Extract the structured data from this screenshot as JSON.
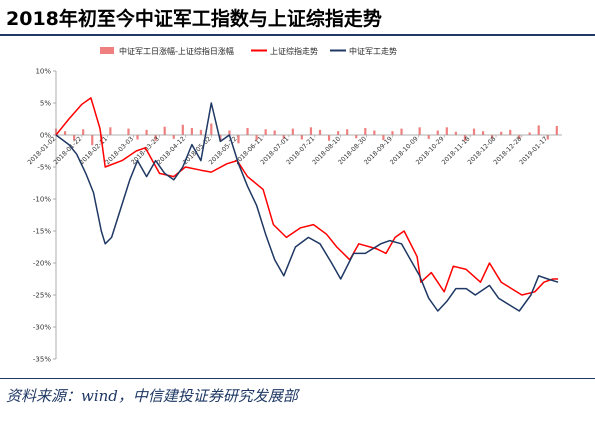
{
  "title": "2018年初至今中证军工指数与上证综指走势",
  "source": "资料来源：wind，中信建投证券研究发展部",
  "chart_data": {
    "type": "line",
    "ylim": [
      -35,
      10
    ],
    "yticks": [
      10,
      5,
      0,
      -5,
      -10,
      -15,
      -20,
      -25,
      -30,
      -35
    ],
    "ytick_labels": [
      "10%",
      "5%",
      "0%",
      "-5%",
      "-10%",
      "-15%",
      "-20%",
      "-25%",
      "-30%",
      "-35%"
    ],
    "xtick_labels": [
      "2018-01-02",
      "2018-01-22",
      "2018-02-11",
      "2018-03-03",
      "2018-03-23",
      "2018-04-12",
      "2018-05-02",
      "2018-05-22",
      "2018-06-11",
      "2018-07-01",
      "2018-07-21",
      "2018-08-10",
      "2018-08-30",
      "2018-09-19",
      "2018-10-09",
      "2018-10-29",
      "2018-11-18",
      "2018-12-08",
      "2018-12-28",
      "2019-01-17"
    ],
    "grid": false,
    "legend_position": "top",
    "series": [
      {
        "name": "中证军工日涨幅-上证综指日涨幅",
        "type": "bar",
        "color": "#f08080",
        "x": [
          "2018-01-02",
          "2018-01-09",
          "2018-01-16",
          "2018-01-23",
          "2018-01-30",
          "2018-02-06",
          "2018-02-13",
          "2018-02-27",
          "2018-03-06",
          "2018-03-13",
          "2018-03-20",
          "2018-03-27",
          "2018-04-03",
          "2018-04-10",
          "2018-04-17",
          "2018-04-24",
          "2018-05-02",
          "2018-05-09",
          "2018-05-16",
          "2018-05-23",
          "2018-05-30",
          "2018-06-06",
          "2018-06-13",
          "2018-06-20",
          "2018-06-27",
          "2018-07-04",
          "2018-07-11",
          "2018-07-18",
          "2018-07-25",
          "2018-08-01",
          "2018-08-08",
          "2018-08-15",
          "2018-08-22",
          "2018-08-29",
          "2018-09-05",
          "2018-09-12",
          "2018-09-19",
          "2018-09-26",
          "2018-10-10",
          "2018-10-17",
          "2018-10-24",
          "2018-10-31",
          "2018-11-07",
          "2018-11-14",
          "2018-11-21",
          "2018-11-28",
          "2018-12-05",
          "2018-12-12",
          "2018-12-19",
          "2018-12-26",
          "2019-01-03",
          "2019-01-10",
          "2019-01-17",
          "2019-01-24"
        ],
        "values": [
          1.0,
          0.6,
          -0.8,
          0.9,
          -1.6,
          -1.2,
          1.2,
          1.0,
          -0.7,
          0.8,
          -0.9,
          1.3,
          -0.6,
          1.6,
          1.1,
          0.8,
          1.8,
          -0.9,
          0.7,
          -1.3,
          1.1,
          -0.8,
          0.9,
          0.7,
          -0.6,
          1.0,
          -0.7,
          1.2,
          0.8,
          -0.9,
          0.6,
          0.9,
          -0.5,
          1.1,
          0.7,
          -0.8,
          0.6,
          1.0,
          1.2,
          -0.6,
          0.7,
          1.2,
          0.5,
          -0.9,
          1.0,
          0.6,
          -0.5,
          0.5,
          0.8,
          -0.6,
          0.4,
          1.5,
          -0.7,
          1.4
        ]
      },
      {
        "name": "上证综指走势",
        "type": "line",
        "color": "#ff0000",
        "x": [
          "2018-01-02",
          "2018-01-12",
          "2018-01-22",
          "2018-01-29",
          "2018-02-05",
          "2018-02-09",
          "2018-02-22",
          "2018-03-05",
          "2018-03-12",
          "2018-03-23",
          "2018-04-03",
          "2018-04-12",
          "2018-04-24",
          "2018-05-02",
          "2018-05-14",
          "2018-05-22",
          "2018-05-30",
          "2018-06-11",
          "2018-06-19",
          "2018-06-29",
          "2018-07-10",
          "2018-07-20",
          "2018-07-30",
          "2018-08-07",
          "2018-08-17",
          "2018-08-24",
          "2018-09-07",
          "2018-09-14",
          "2018-09-21",
          "2018-09-28",
          "2018-10-08",
          "2018-10-11",
          "2018-10-19",
          "2018-10-29",
          "2018-11-05",
          "2018-11-15",
          "2018-11-26",
          "2018-12-03",
          "2018-12-12",
          "2018-12-20",
          "2018-12-28",
          "2019-01-07",
          "2019-01-14",
          "2019-01-21",
          "2019-01-25"
        ],
        "values": [
          0.0,
          2.5,
          4.8,
          5.8,
          1.0,
          -5.0,
          -4.0,
          -2.5,
          -2.0,
          -6.0,
          -6.5,
          -5.0,
          -5.5,
          -5.8,
          -4.5,
          -4.0,
          -6.5,
          -8.5,
          -14.0,
          -16.0,
          -14.5,
          -14.0,
          -15.5,
          -17.5,
          -19.5,
          -17.0,
          -17.8,
          -18.5,
          -16.0,
          -15.0,
          -19.0,
          -23.0,
          -21.5,
          -24.5,
          -20.5,
          -21.0,
          -23.0,
          -20.0,
          -23.0,
          -24.0,
          -25.0,
          -24.5,
          -23.0,
          -22.5,
          -22.5
        ]
      },
      {
        "name": "中证军工走势",
        "type": "line",
        "color": "#1f3864",
        "x": [
          "2018-01-02",
          "2018-01-12",
          "2018-01-18",
          "2018-01-25",
          "2018-01-31",
          "2018-02-06",
          "2018-02-09",
          "2018-02-14",
          "2018-02-28",
          "2018-03-06",
          "2018-03-13",
          "2018-03-20",
          "2018-03-27",
          "2018-04-03",
          "2018-04-10",
          "2018-04-17",
          "2018-04-24",
          "2018-05-02",
          "2018-05-09",
          "2018-05-16",
          "2018-05-23",
          "2018-05-30",
          "2018-06-06",
          "2018-06-13",
          "2018-06-20",
          "2018-06-27",
          "2018-07-06",
          "2018-07-16",
          "2018-07-25",
          "2018-08-03",
          "2018-08-10",
          "2018-08-20",
          "2018-08-29",
          "2018-09-10",
          "2018-09-17",
          "2018-09-26",
          "2018-10-10",
          "2018-10-17",
          "2018-10-24",
          "2018-10-31",
          "2018-11-07",
          "2018-11-15",
          "2018-11-22",
          "2018-12-03",
          "2018-12-10",
          "2018-12-18",
          "2018-12-26",
          "2019-01-04",
          "2019-01-10",
          "2019-01-17",
          "2019-01-25"
        ],
        "values": [
          0.0,
          -1.5,
          -3.0,
          -6.0,
          -9.0,
          -15.0,
          -17.0,
          -16.0,
          -7.0,
          -4.0,
          -6.5,
          -4.0,
          -6.0,
          -7.0,
          -5.0,
          -1.5,
          -4.0,
          5.0,
          -1.0,
          0.0,
          -4.5,
          -8.0,
          -11.0,
          -15.5,
          -19.5,
          -22.0,
          -17.5,
          -16.0,
          -17.0,
          -20.0,
          -22.5,
          -18.5,
          -18.5,
          -17.0,
          -16.5,
          -17.0,
          -22.0,
          -25.5,
          -27.5,
          -26.0,
          -24.0,
          -24.0,
          -25.0,
          -23.5,
          -25.5,
          -26.5,
          -27.5,
          -25.0,
          -22.0,
          -22.5,
          -23.0
        ]
      }
    ]
  }
}
